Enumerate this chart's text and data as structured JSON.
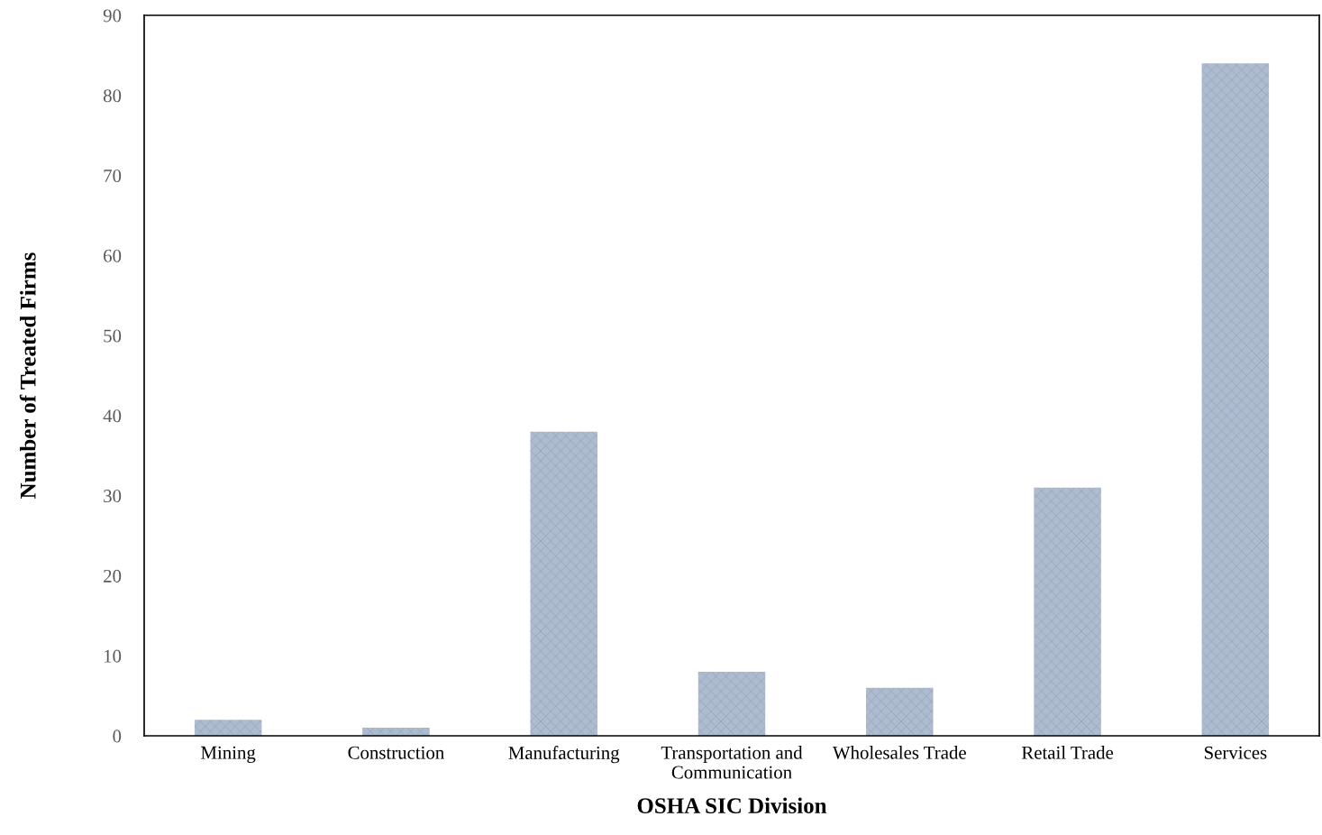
{
  "chart_data": {
    "type": "bar",
    "xlabel": "OSHA SIC Division",
    "ylabel": "Number of Treated Firms",
    "categories": [
      "Mining",
      "Construction",
      "Manufacturing",
      "Transportation and Communication",
      "Wholesales Trade",
      "Retail Trade",
      "Services"
    ],
    "values": [
      2,
      1,
      38,
      8,
      6,
      31,
      84
    ],
    "color": "#aebcd0",
    "ylim": [
      0,
      90
    ],
    "yticks": [
      0,
      10,
      20,
      30,
      40,
      50,
      60,
      70,
      80,
      90
    ],
    "grid": false
  }
}
